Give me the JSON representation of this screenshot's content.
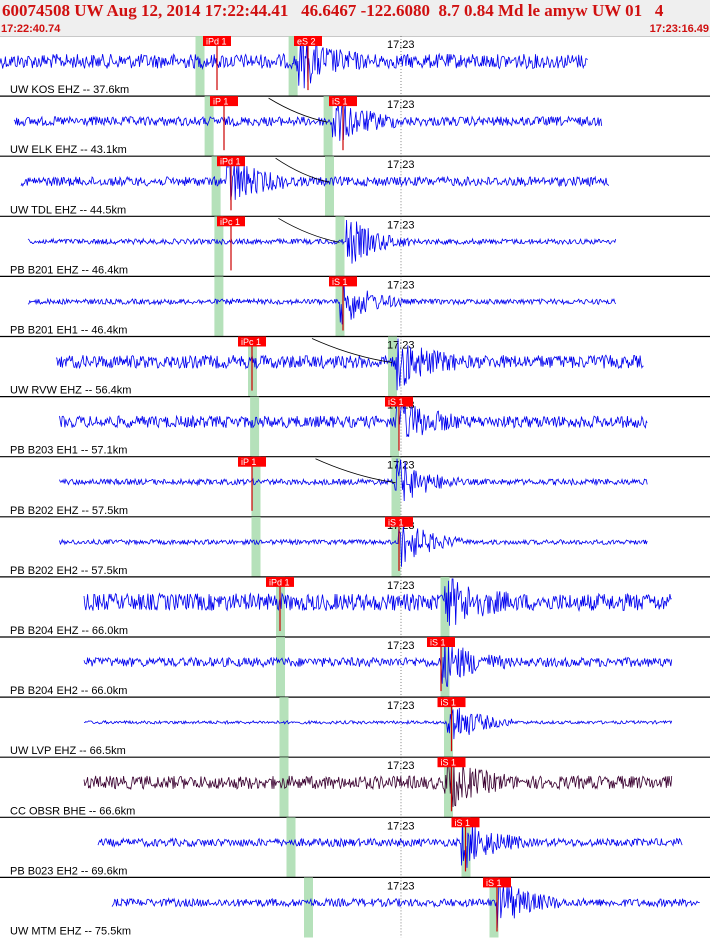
{
  "header": {
    "title": "60074508 UW Aug 12, 2014 17:22:44.41   46.6467 -122.6080  8.7 0.84 Md le amyw UW 01   4",
    "start_time": "17:22:40.74",
    "end_time": "17:23:16.49"
  },
  "minute_label": "17:23",
  "colors": {
    "trace": "#0000ee",
    "trace_alt": "#3a0030",
    "pick_flag": "#ff0000",
    "pick_line": "#cc0000",
    "window_band": "#a8dcae",
    "separator": "#000000",
    "label_text": "#000000"
  },
  "traces": [
    {
      "label": "UW KOS EHZ -- 37.6km",
      "start": 0.0,
      "end": 0.84,
      "amp": 0.55,
      "picks": [
        {
          "label": "iPd 1",
          "t": 0.29,
          "color": "#ff0000"
        },
        {
          "label": "eS 2",
          "t": 0.42,
          "color": "#ff0000"
        }
      ],
      "event": 0.43,
      "band1": 0.285,
      "band2": 0.418,
      "curve": false
    },
    {
      "label": "UW ELK EHZ -- 43.1km",
      "start": 0.02,
      "end": 0.86,
      "amp": 0.35,
      "picks": [
        {
          "label": "iP 1",
          "t": 0.3,
          "color": "#ff0000"
        },
        {
          "label": "iS 1",
          "t": 0.47,
          "color": "#ff0000"
        }
      ],
      "event": 0.48,
      "band1": 0.298,
      "band2": 0.468,
      "curve": true
    },
    {
      "label": "UW TDL EHZ -- 44.5km",
      "start": 0.03,
      "end": 0.87,
      "amp": 0.35,
      "picks": [
        {
          "label": "iPd 1",
          "t": 0.31,
          "color": "#ff0000"
        }
      ],
      "event": 0.33,
      "band1": 0.308,
      "band2": 0.47,
      "curve": true
    },
    {
      "label": "PB B201 EHZ -- 46.4km",
      "start": 0.04,
      "end": 0.88,
      "amp": 0.2,
      "picks": [
        {
          "label": "iPc 1",
          "t": 0.31,
          "color": "#ff0000"
        }
      ],
      "event": 0.5,
      "band1": 0.312,
      "band2": 0.485,
      "curve": true
    },
    {
      "label": "PB B201 EH1 -- 46.4km",
      "start": 0.04,
      "end": 0.88,
      "amp": 0.2,
      "picks": [
        {
          "label": "iS 1",
          "t": 0.47,
          "color": "#ff0000"
        }
      ],
      "event": 0.49,
      "band1": 0.312,
      "band2": 0.485,
      "curve": false
    },
    {
      "label": "UW RVW EHZ -- 56.4km",
      "start": 0.08,
      "end": 0.92,
      "amp": 0.5,
      "picks": [
        {
          "label": "iPc 1",
          "t": 0.34,
          "color": "#ff0000"
        }
      ],
      "event": 0.57,
      "band1": 0.36,
      "band2": 0.56,
      "curve": true
    },
    {
      "label": "PB B203 EH1 -- 57.1km",
      "start": 0.085,
      "end": 0.925,
      "amp": 0.45,
      "picks": [
        {
          "label": "iS 1",
          "t": 0.55,
          "color": "#ff0000"
        }
      ],
      "event": 0.57,
      "band1": 0.363,
      "band2": 0.563,
      "curve": false
    },
    {
      "label": "PB B202 EHZ -- 57.5km",
      "start": 0.085,
      "end": 0.925,
      "amp": 0.22,
      "picks": [
        {
          "label": "iP 1",
          "t": 0.34,
          "color": "#ff0000"
        }
      ],
      "event": 0.57,
      "band1": 0.365,
      "band2": 0.565,
      "curve": true
    },
    {
      "label": "PB B202 EH2 -- 57.5km",
      "start": 0.085,
      "end": 0.925,
      "amp": 0.18,
      "picks": [
        {
          "label": "iS 1",
          "t": 0.55,
          "color": "#ff0000"
        }
      ],
      "event": 0.575,
      "band1": 0.365,
      "band2": 0.565,
      "curve": false
    },
    {
      "label": "PB B204 EHZ -- 66.0km",
      "start": 0.12,
      "end": 0.96,
      "amp": 0.65,
      "picks": [
        {
          "label": "iPd 1",
          "t": 0.38,
          "color": "#ff0000"
        }
      ],
      "event": 0.64,
      "band1": 0.4,
      "band2": 0.635,
      "curve": false
    },
    {
      "label": "PB B204 EH2 -- 66.0km",
      "start": 0.12,
      "end": 0.96,
      "amp": 0.35,
      "picks": [
        {
          "label": "iS 1",
          "t": 0.61,
          "color": "#ff0000"
        }
      ],
      "event": 0.635,
      "band1": 0.4,
      "band2": 0.635,
      "curve": false
    },
    {
      "label": "UW LVP EHZ -- 66.5km",
      "start": 0.12,
      "end": 0.96,
      "amp": 0.12,
      "picks": [
        {
          "label": "iS 1",
          "t": 0.625,
          "color": "#ff0000"
        }
      ],
      "event": 0.645,
      "band1": 0.405,
      "band2": 0.64,
      "curve": false
    },
    {
      "label": "CC OBSR BHE -- 66.6km",
      "start": 0.12,
      "end": 0.96,
      "amp": 0.5,
      "picks": [
        {
          "label": "iS 1",
          "t": 0.625,
          "color": "#ff0000"
        }
      ],
      "event": 0.64,
      "band1": 0.405,
      "band2": 0.64,
      "curve": false,
      "alt_color": true
    },
    {
      "label": "PB B023 EH2 -- 69.6km",
      "start": 0.14,
      "end": 0.975,
      "amp": 0.3,
      "picks": [
        {
          "label": "iS 1",
          "t": 0.645,
          "color": "#ff0000"
        }
      ],
      "event": 0.665,
      "band1": 0.415,
      "band2": 0.665,
      "curve": false
    },
    {
      "label": "UW MTM EHZ -- 75.5km",
      "start": 0.16,
      "end": 1.0,
      "amp": 0.3,
      "picks": [
        {
          "label": "iS 1",
          "t": 0.69,
          "color": "#ff0000"
        }
      ],
      "event": 0.715,
      "band1": 0.44,
      "band2": 0.705,
      "curve": false
    }
  ]
}
